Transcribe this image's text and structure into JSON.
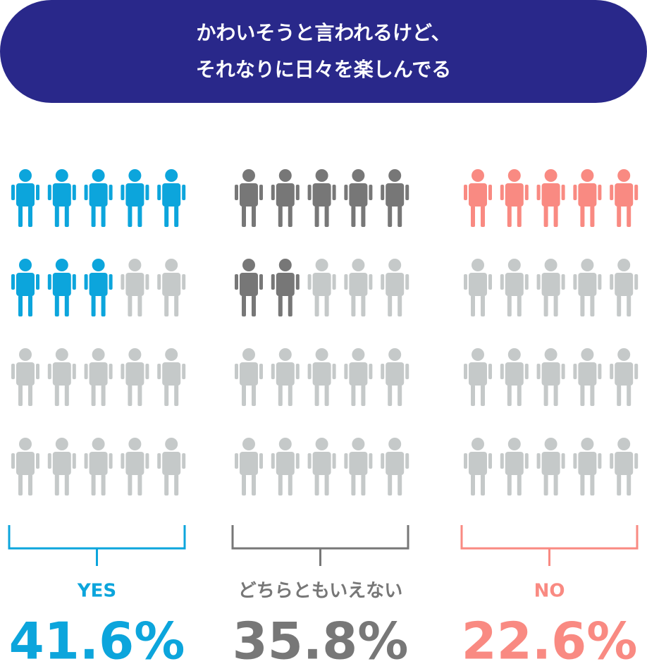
{
  "chart_data": {
    "type": "pictogram",
    "title": [
      "かわいそうと言われるけど、",
      "それなりに日々を楽しんでる"
    ],
    "title_color": "#29288a",
    "categories": [
      "YES",
      "どちらともいえない",
      "NO"
    ],
    "values": [
      41.6,
      35.8,
      22.6
    ],
    "value_labels": [
      "41.6%",
      "35.8%",
      "22.6%"
    ],
    "colors": [
      "#0ca5dc",
      "#777777",
      "#f98a82"
    ],
    "empty_color": "#c5c9c9",
    "ylim": [
      0,
      100
    ]
  }
}
